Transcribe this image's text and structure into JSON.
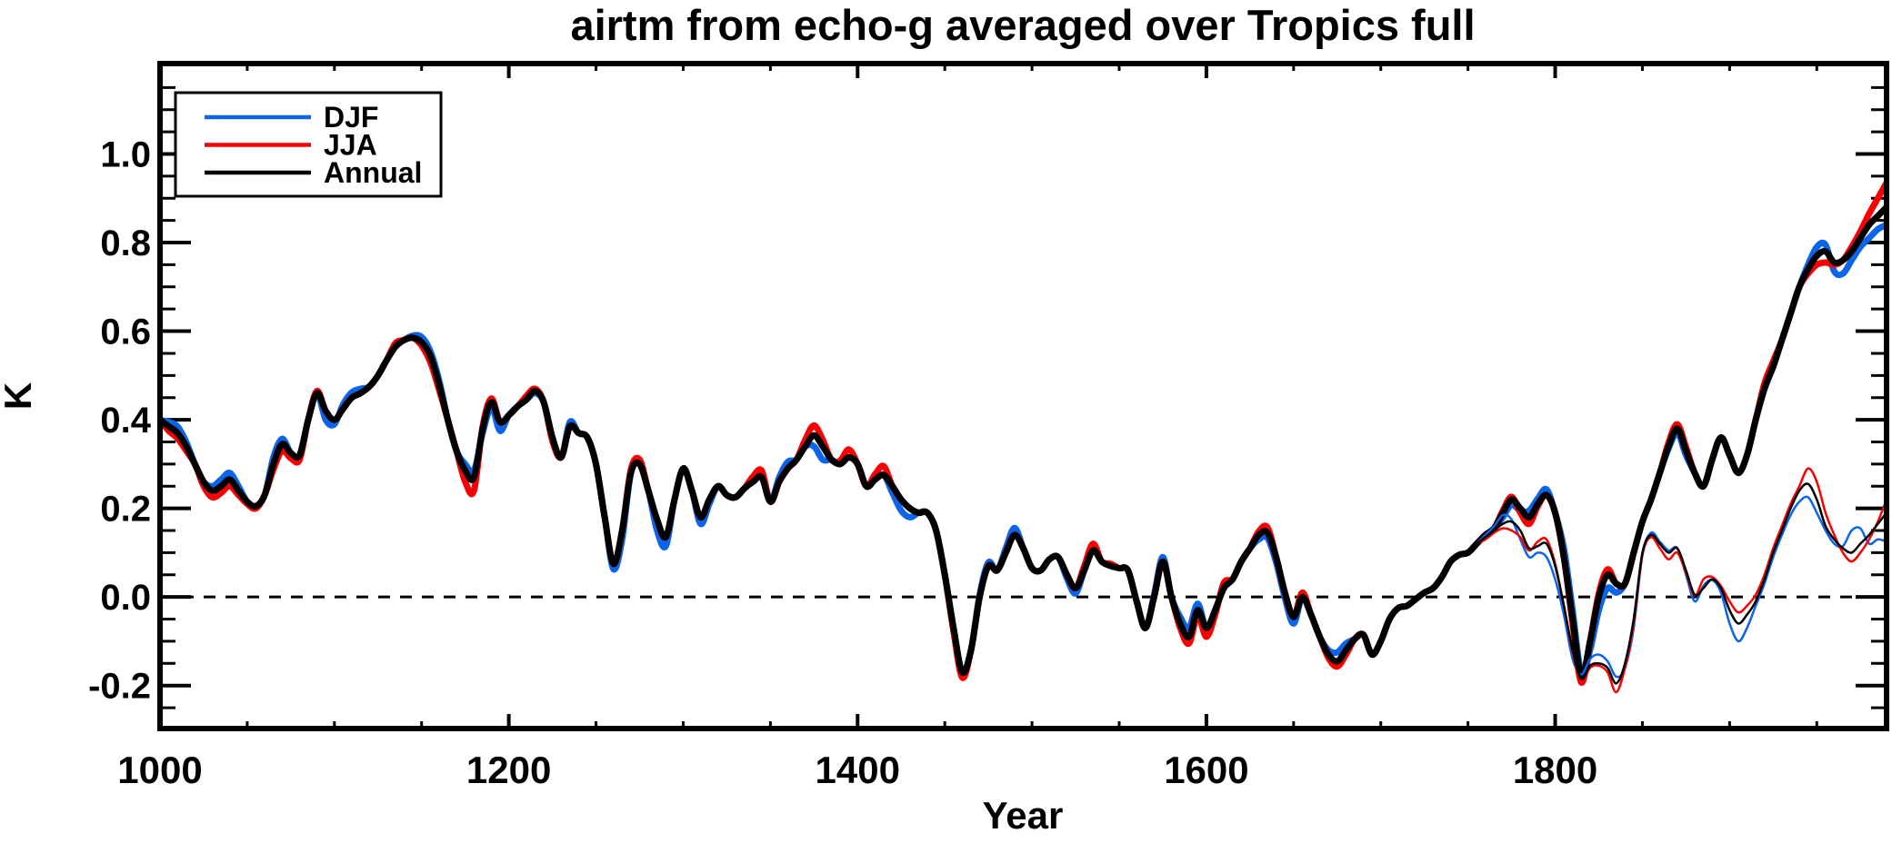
{
  "title": "airtm from echo-g averaged over Tropics full",
  "chart_data": {
    "type": "line",
    "title": "airtm from echo-g averaged over Tropics full",
    "xlabel": "Year",
    "ylabel": "K",
    "xlim": [
      1000,
      1990
    ],
    "ylim": [
      -0.297,
      1.204
    ],
    "grid": false,
    "zero_line_dashed": true,
    "x_major_ticks": [
      1000,
      1200,
      1400,
      1600,
      1800
    ],
    "x_tick_labels": [
      "1000",
      "1200",
      "1400",
      "1600",
      "1800"
    ],
    "x_minor_step": 50,
    "y_major_ticks": [
      -0.2,
      0.0,
      0.2,
      0.4,
      0.6,
      0.8,
      1.0
    ],
    "y_tick_labels": [
      "-0.2",
      "0.0",
      "0.2",
      "0.4",
      "0.6",
      "0.8",
      "1.0"
    ],
    "y_minor_step": 0.05,
    "legend": {
      "position": "top-left",
      "entries": [
        {
          "label": "DJF",
          "color": "#0c64e8"
        },
        {
          "label": "JJA",
          "color": "#fb0000"
        },
        {
          "label": "Annual",
          "color": "#000000"
        }
      ]
    },
    "colors": {
      "djf": "#0c64e8",
      "jja": "#fb0000",
      "annual": "#000000",
      "axis": "#000000",
      "background": "#ffffff"
    },
    "series": [
      {
        "name": "DJF",
        "color": "#0c64e8",
        "style": "thick",
        "start_year": 1000,
        "step": 5,
        "values": [
          0.4,
          0.395,
          0.385,
          0.35,
          0.3,
          0.26,
          0.25,
          0.265,
          0.28,
          0.25,
          0.215,
          0.205,
          0.23,
          0.315,
          0.357,
          0.325,
          0.32,
          0.4,
          0.46,
          0.4,
          0.39,
          0.435,
          0.462,
          0.47,
          0.475,
          0.5,
          0.535,
          0.565,
          0.58,
          0.59,
          0.587,
          0.555,
          0.49,
          0.4,
          0.33,
          0.3,
          0.285,
          0.37,
          0.428,
          0.375,
          0.41,
          0.43,
          0.445,
          0.46,
          0.44,
          0.36,
          0.315,
          0.395,
          0.37,
          0.36,
          0.3,
          0.18,
          0.063,
          0.13,
          0.28,
          0.3,
          0.24,
          0.15,
          0.115,
          0.22,
          0.29,
          0.24,
          0.165,
          0.21,
          0.25,
          0.23,
          0.225,
          0.245,
          0.26,
          0.27,
          0.215,
          0.27,
          0.305,
          0.31,
          0.34,
          0.34,
          0.31,
          0.31,
          0.3,
          0.315,
          0.3,
          0.25,
          0.265,
          0.275,
          0.235,
          0.195,
          0.18,
          0.19,
          0.19,
          0.15,
          0.05,
          -0.07,
          -0.17,
          -0.12,
          0.005,
          0.078,
          0.06,
          0.11,
          0.156,
          0.11,
          0.065,
          0.06,
          0.085,
          0.09,
          0.042,
          0.008,
          0.06,
          0.105,
          0.08,
          0.07,
          0.065,
          0.06,
          -0.01,
          -0.07,
          0.005,
          0.09,
          0.0,
          -0.045,
          -0.07,
          -0.015,
          -0.07,
          -0.03,
          0.02,
          0.04,
          0.08,
          0.11,
          0.13,
          0.133,
          0.078,
          -0.002,
          -0.06,
          0.0,
          -0.04,
          -0.09,
          -0.12,
          -0.125,
          -0.105,
          -0.095,
          -0.085,
          -0.13,
          -0.1,
          -0.05,
          -0.025,
          -0.02,
          -0.005,
          0.01,
          0.02,
          0.045,
          0.08,
          0.095,
          0.1,
          0.12,
          0.14,
          0.155,
          0.18,
          0.208,
          0.195,
          0.195,
          0.222,
          0.243,
          0.19,
          0.11,
          -0.03,
          -0.172,
          -0.12,
          -0.03,
          0.02,
          0.01,
          0.03,
          0.1,
          0.17,
          0.22,
          0.28,
          0.335,
          0.37,
          0.32,
          0.28,
          0.25,
          0.31,
          0.36,
          0.32,
          0.28,
          0.32,
          0.4,
          0.47,
          0.52,
          0.58,
          0.64,
          0.7,
          0.75,
          0.79,
          0.795,
          0.735,
          0.73,
          0.76,
          0.79,
          0.81,
          0.83,
          0.84
        ]
      },
      {
        "name": "JJA",
        "color": "#fb0000",
        "style": "thick",
        "start_year": 1000,
        "step": 5,
        "values": [
          0.4,
          0.375,
          0.358,
          0.33,
          0.3,
          0.25,
          0.225,
          0.235,
          0.25,
          0.23,
          0.21,
          0.2,
          0.23,
          0.288,
          0.33,
          0.313,
          0.31,
          0.4,
          0.465,
          0.42,
          0.4,
          0.425,
          0.45,
          0.46,
          0.475,
          0.5,
          0.535,
          0.573,
          0.58,
          0.585,
          0.567,
          0.53,
          0.468,
          0.4,
          0.33,
          0.26,
          0.24,
          0.385,
          0.448,
          0.395,
          0.41,
          0.43,
          0.453,
          0.47,
          0.44,
          0.352,
          0.315,
          0.385,
          0.37,
          0.36,
          0.3,
          0.18,
          0.075,
          0.15,
          0.288,
          0.31,
          0.24,
          0.175,
          0.135,
          0.22,
          0.29,
          0.24,
          0.18,
          0.22,
          0.25,
          0.23,
          0.225,
          0.245,
          0.272,
          0.285,
          0.215,
          0.26,
          0.29,
          0.31,
          0.355,
          0.387,
          0.355,
          0.31,
          0.308,
          0.333,
          0.3,
          0.25,
          0.277,
          0.295,
          0.25,
          0.22,
          0.2,
          0.19,
          0.19,
          0.15,
          0.05,
          -0.078,
          -0.182,
          -0.12,
          0.0,
          0.07,
          0.06,
          0.1,
          0.14,
          0.11,
          0.065,
          0.06,
          0.085,
          0.09,
          0.05,
          0.02,
          0.07,
          0.12,
          0.08,
          0.075,
          0.065,
          0.06,
          -0.01,
          -0.07,
          0.0,
          0.08,
          0.0,
          -0.07,
          -0.105,
          -0.042,
          -0.09,
          -0.04,
          0.032,
          0.04,
          0.08,
          0.11,
          0.148,
          0.157,
          0.09,
          0.01,
          -0.045,
          0.01,
          -0.04,
          -0.09,
          -0.138,
          -0.157,
          -0.13,
          -0.095,
          -0.085,
          -0.13,
          -0.1,
          -0.05,
          -0.025,
          -0.02,
          -0.005,
          0.01,
          0.02,
          0.045,
          0.08,
          0.095,
          0.1,
          0.12,
          0.14,
          0.155,
          0.195,
          0.226,
          0.19,
          0.165,
          0.205,
          0.23,
          0.19,
          0.09,
          -0.06,
          -0.193,
          -0.1,
          0.008,
          0.062,
          0.03,
          0.03,
          0.1,
          0.17,
          0.22,
          0.28,
          0.348,
          0.39,
          0.338,
          0.28,
          0.25,
          0.31,
          0.36,
          0.32,
          0.28,
          0.32,
          0.4,
          0.482,
          0.532,
          0.58,
          0.64,
          0.7,
          0.73,
          0.75,
          0.755,
          0.75,
          0.76,
          0.79,
          0.825,
          0.865,
          0.9,
          0.935
        ]
      },
      {
        "name": "Annual",
        "color": "#000000",
        "style": "thick",
        "start_year": 1000,
        "step": 5,
        "values": [
          0.4,
          0.385,
          0.37,
          0.34,
          0.3,
          0.26,
          0.24,
          0.25,
          0.265,
          0.24,
          0.215,
          0.205,
          0.23,
          0.3,
          0.345,
          0.325,
          0.32,
          0.4,
          0.46,
          0.42,
          0.4,
          0.425,
          0.45,
          0.46,
          0.475,
          0.5,
          0.535,
          0.565,
          0.58,
          0.585,
          0.575,
          0.545,
          0.48,
          0.4,
          0.33,
          0.285,
          0.27,
          0.38,
          0.44,
          0.395,
          0.41,
          0.43,
          0.445,
          0.465,
          0.44,
          0.36,
          0.315,
          0.385,
          0.37,
          0.36,
          0.3,
          0.18,
          0.075,
          0.15,
          0.28,
          0.3,
          0.24,
          0.175,
          0.135,
          0.22,
          0.29,
          0.24,
          0.18,
          0.22,
          0.25,
          0.23,
          0.225,
          0.245,
          0.26,
          0.27,
          0.215,
          0.26,
          0.29,
          0.31,
          0.34,
          0.365,
          0.34,
          0.31,
          0.3,
          0.315,
          0.3,
          0.25,
          0.265,
          0.275,
          0.25,
          0.22,
          0.2,
          0.19,
          0.19,
          0.15,
          0.05,
          -0.07,
          -0.17,
          -0.12,
          0.0,
          0.07,
          0.06,
          0.1,
          0.14,
          0.11,
          0.065,
          0.06,
          0.085,
          0.09,
          0.05,
          0.02,
          0.06,
          0.105,
          0.08,
          0.07,
          0.065,
          0.06,
          -0.01,
          -0.07,
          0.0,
          0.08,
          0.0,
          -0.06,
          -0.09,
          -0.03,
          -0.07,
          -0.03,
          0.02,
          0.04,
          0.08,
          0.11,
          0.14,
          0.145,
          0.09,
          0.01,
          -0.045,
          0.0,
          -0.04,
          -0.09,
          -0.13,
          -0.145,
          -0.12,
          -0.095,
          -0.085,
          -0.13,
          -0.1,
          -0.05,
          -0.025,
          -0.02,
          -0.005,
          0.01,
          0.02,
          0.045,
          0.08,
          0.095,
          0.1,
          0.12,
          0.14,
          0.155,
          0.19,
          0.22,
          0.2,
          0.18,
          0.21,
          0.23,
          0.19,
          0.09,
          -0.05,
          -0.18,
          -0.1,
          0.0,
          0.05,
          0.03,
          0.03,
          0.1,
          0.17,
          0.22,
          0.28,
          0.34,
          0.38,
          0.33,
          0.28,
          0.25,
          0.31,
          0.36,
          0.32,
          0.28,
          0.32,
          0.4,
          0.47,
          0.52,
          0.58,
          0.64,
          0.7,
          0.74,
          0.77,
          0.78,
          0.755,
          0.76,
          0.78,
          0.81,
          0.84,
          0.86,
          0.88
        ]
      },
      {
        "name": "DJF-thin",
        "color": "#0c64e8",
        "style": "thin",
        "start_year": 1755,
        "step": 5,
        "values": [
          0.12,
          0.14,
          0.16,
          0.185,
          0.175,
          0.13,
          0.09,
          0.1,
          0.09,
          0.04,
          -0.04,
          -0.14,
          -0.175,
          -0.14,
          -0.13,
          -0.145,
          -0.18,
          -0.16,
          -0.07,
          0.095,
          0.145,
          0.125,
          0.105,
          0.11,
          0.05,
          -0.01,
          0.025,
          0.038,
          0.01,
          -0.06,
          -0.1,
          -0.07,
          -0.02,
          0.03,
          0.09,
          0.14,
          0.185,
          0.215,
          0.225,
          0.19,
          0.15,
          0.12,
          0.115,
          0.15,
          0.155,
          0.12,
          0.13,
          0.125
        ]
      },
      {
        "name": "JJA-thin",
        "color": "#fb0000",
        "style": "thin",
        "start_year": 1755,
        "step": 5,
        "values": [
          0.12,
          0.13,
          0.145,
          0.155,
          0.15,
          0.135,
          0.105,
          0.125,
          0.13,
          0.075,
          -0.02,
          -0.125,
          -0.19,
          -0.16,
          -0.155,
          -0.17,
          -0.215,
          -0.16,
          -0.06,
          0.095,
          0.135,
          0.11,
          0.085,
          0.1,
          0.055,
          0.003,
          0.04,
          0.045,
          0.025,
          -0.01,
          -0.035,
          -0.02,
          0.005,
          0.05,
          0.11,
          0.16,
          0.21,
          0.25,
          0.29,
          0.26,
          0.19,
          0.14,
          0.1,
          0.08,
          0.1,
          0.13,
          0.17,
          0.22
        ]
      },
      {
        "name": "Annual-thin",
        "color": "#000000",
        "style": "thin",
        "start_year": 1755,
        "step": 5,
        "values": [
          0.12,
          0.135,
          0.15,
          0.165,
          0.17,
          0.15,
          0.11,
          0.115,
          0.12,
          0.07,
          -0.02,
          -0.12,
          -0.185,
          -0.155,
          -0.15,
          -0.16,
          -0.195,
          -0.15,
          -0.05,
          0.1,
          0.14,
          0.12,
          0.1,
          0.11,
          0.06,
          0.005,
          0.02,
          0.04,
          0.02,
          -0.03,
          -0.06,
          -0.04,
          -0.01,
          0.04,
          0.1,
          0.15,
          0.2,
          0.24,
          0.255,
          0.22,
          0.16,
          0.13,
          0.11,
          0.1,
          0.12,
          0.14,
          0.165,
          0.19
        ]
      }
    ]
  }
}
